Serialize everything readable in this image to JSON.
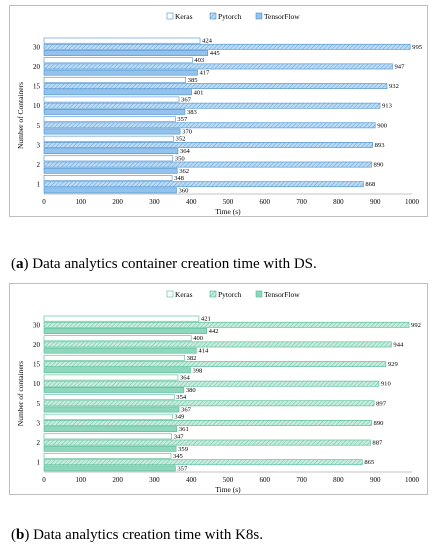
{
  "captions": [
    {
      "tag": "a",
      "text": "Data analytics container creation time with DS."
    },
    {
      "tag": "b",
      "text": "Data analytics creation time with K8s."
    }
  ],
  "chart_data": [
    {
      "type": "bar",
      "orientation": "horizontal",
      "title": "",
      "xlabel": "Time (s)",
      "ylabel": "Number of Containers",
      "xlim": [
        0,
        1000
      ],
      "xticks": [
        0,
        100,
        200,
        300,
        400,
        500,
        600,
        700,
        800,
        900,
        1000
      ],
      "categories": [
        "30",
        "20",
        "15",
        "10",
        "5",
        "3",
        "2",
        "1"
      ],
      "legend_position": "top",
      "grid": false,
      "series": [
        {
          "name": "Keras",
          "values": [
            424,
            403,
            385,
            367,
            357,
            352,
            350,
            348
          ]
        },
        {
          "name": "Pytorch",
          "values": [
            995,
            947,
            932,
            913,
            900,
            893,
            890,
            868
          ]
        },
        {
          "name": "TensorFlow",
          "values": [
            445,
            417,
            401,
            383,
            370,
            364,
            362,
            360
          ]
        }
      ],
      "colors": {
        "Keras": "#ffffff",
        "Pytorch": "#bcdcf5",
        "TensorFlow": "#93c3ec",
        "edge": "#4a8fd0"
      }
    },
    {
      "type": "bar",
      "orientation": "horizontal",
      "title": "",
      "xlabel": "Time (s)",
      "ylabel": "Number of containers",
      "xlim": [
        0,
        1000
      ],
      "xticks": [
        0,
        100,
        200,
        300,
        400,
        500,
        600,
        700,
        800,
        900,
        1000
      ],
      "categories": [
        "30",
        "20",
        "15",
        "10",
        "5",
        "3",
        "2",
        "1"
      ],
      "legend_position": "top",
      "grid": false,
      "series": [
        {
          "name": "Keras",
          "values": [
            421,
            400,
            382,
            364,
            354,
            349,
            347,
            345
          ]
        },
        {
          "name": "Pytorch",
          "values": [
            992,
            944,
            929,
            910,
            897,
            890,
            887,
            865
          ]
        },
        {
          "name": "TensorFlow",
          "values": [
            442,
            414,
            398,
            380,
            367,
            361,
            359,
            357
          ]
        }
      ],
      "colors": {
        "Keras": "#ffffff",
        "Pytorch": "#c9ecdf",
        "TensorFlow": "#8fd7bc",
        "edge": "#4dbb93"
      }
    }
  ]
}
